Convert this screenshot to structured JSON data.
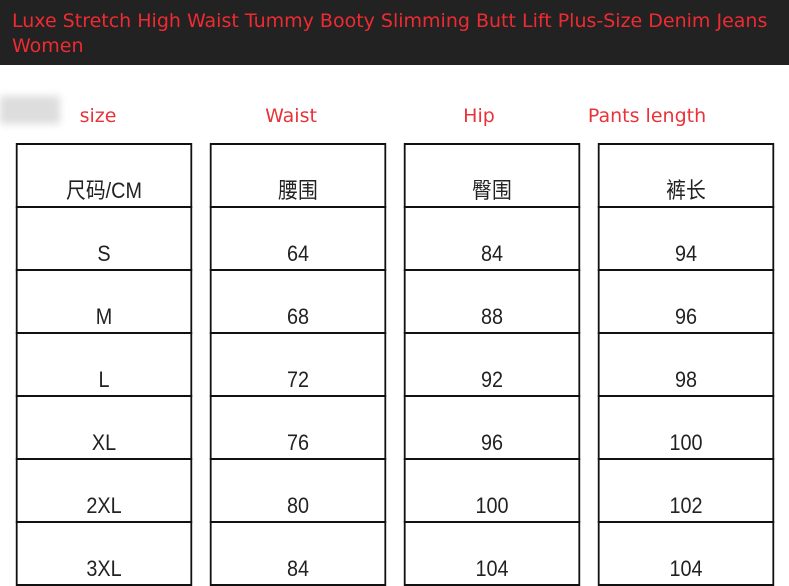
{
  "header": {
    "title": "Luxe Stretch High Waist Tummy Booty Slimming Butt Lift Plus-Size Denim Jeans Women"
  },
  "labels": [
    "size",
    "Waist",
    "Hip",
    "Pants length"
  ],
  "table": {
    "header": [
      "尺码/CM",
      "腰围",
      "臀围",
      "裤长"
    ],
    "rows": [
      [
        "S",
        64,
        84,
        94
      ],
      [
        "M",
        68,
        88,
        96
      ],
      [
        "L",
        72,
        92,
        98
      ],
      [
        "XL",
        76,
        96,
        100
      ],
      [
        "2XL",
        80,
        100,
        102
      ],
      [
        "3XL",
        84,
        104,
        104
      ]
    ]
  }
}
